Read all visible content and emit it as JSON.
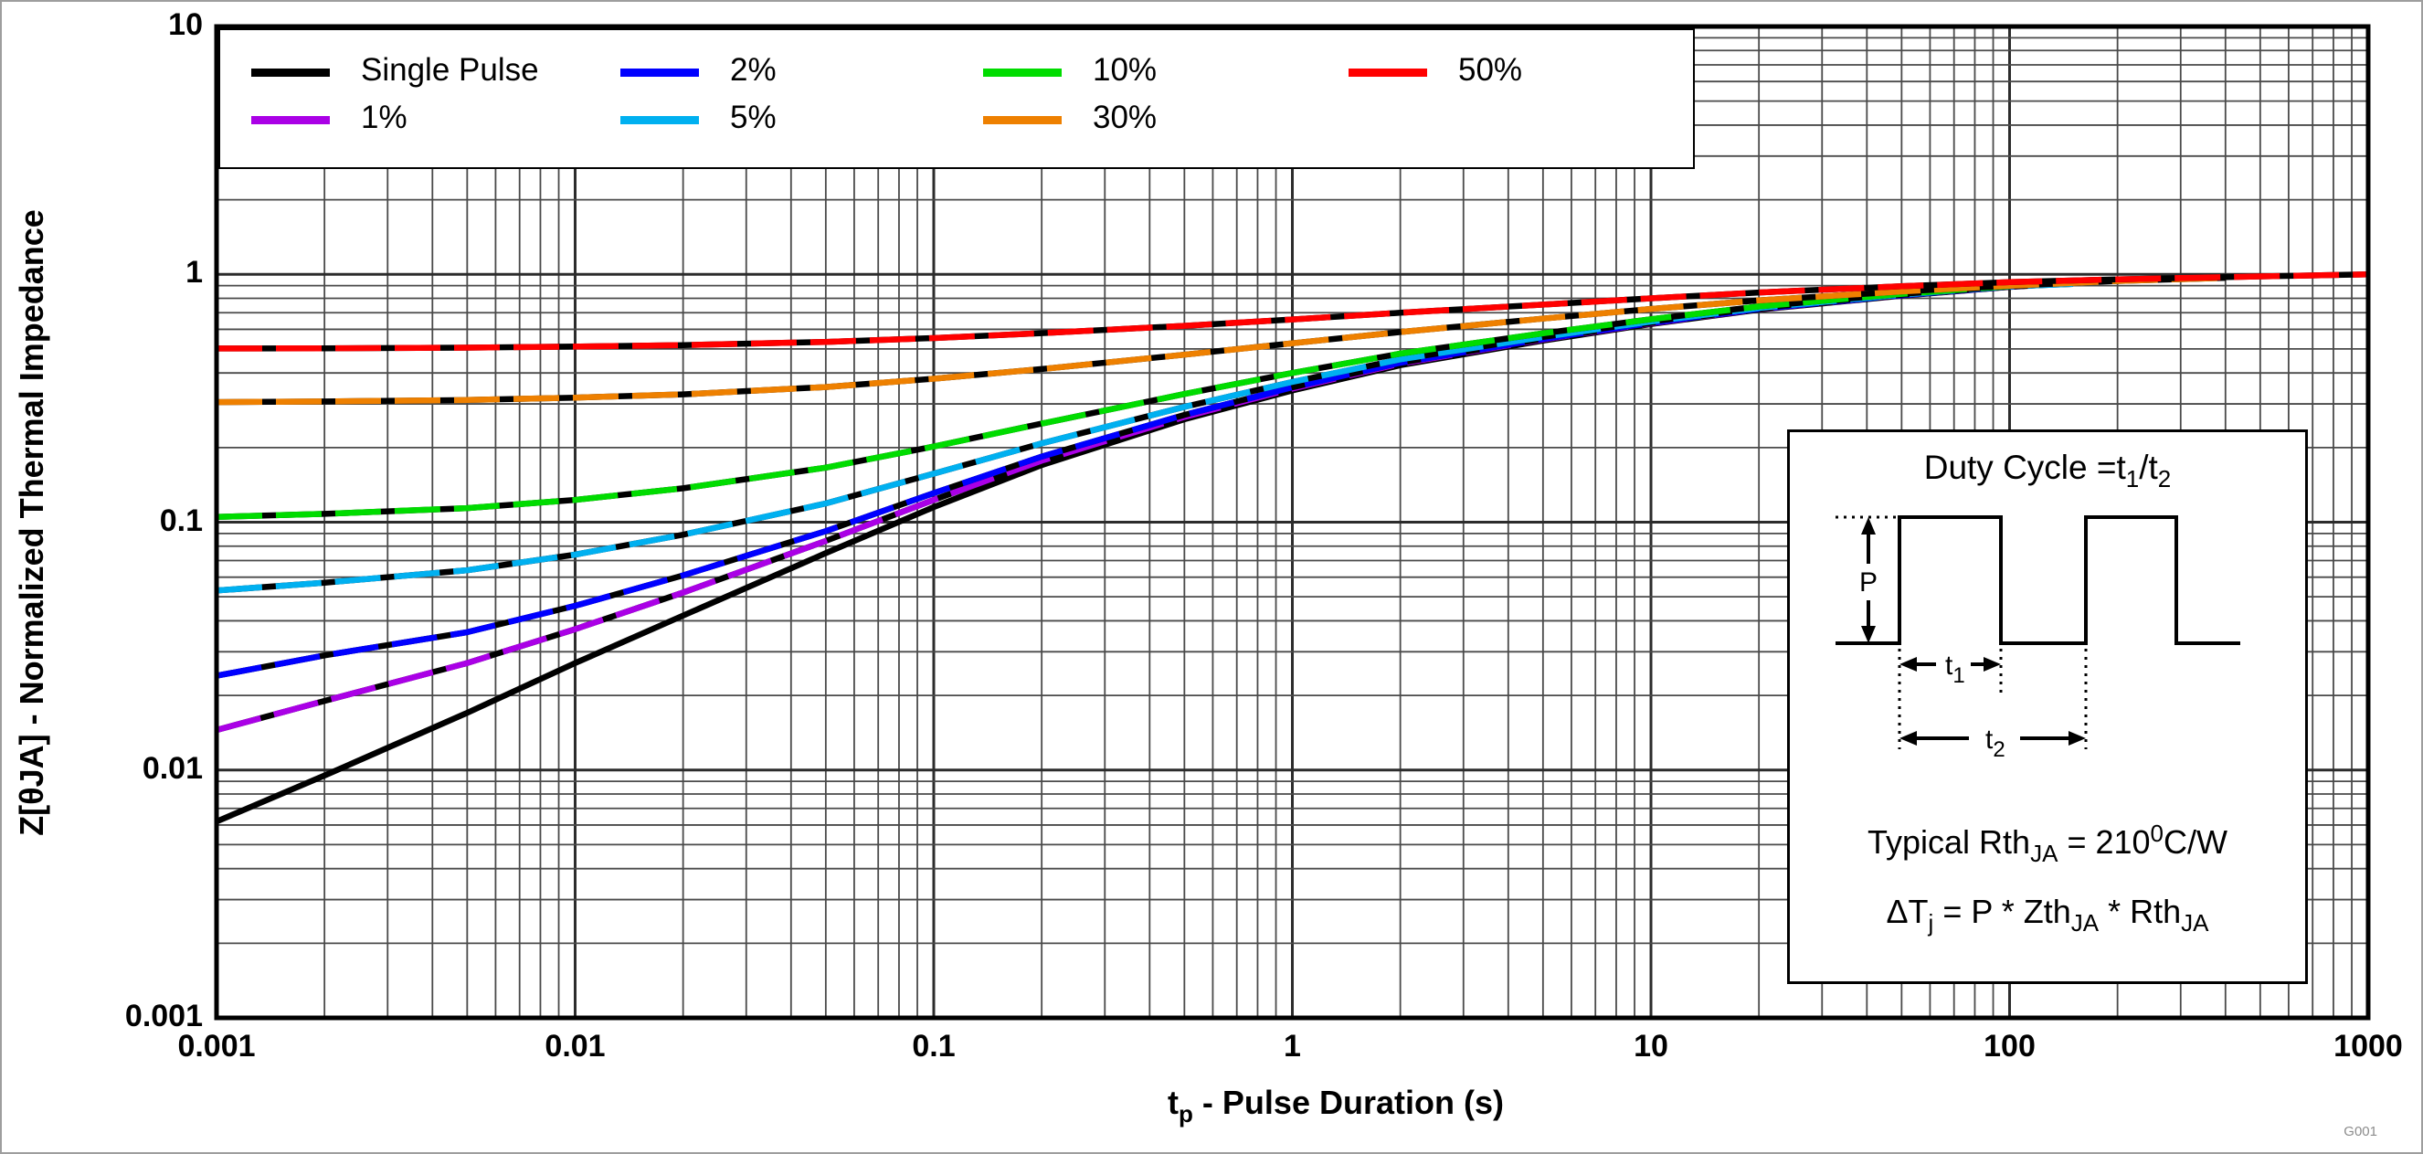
{
  "figure": {
    "watermark": "G001",
    "background": "#ffffff",
    "frame_color": "#000000",
    "grid_major_color": "#2c2c2c",
    "grid_minor_color": "#4a4a4a"
  },
  "axes": {
    "x": {
      "scale": "log",
      "min": 0.001,
      "max": 1000,
      "title_parts": {
        "pre": "t",
        "sub": "p",
        "post": " - Pulse Duration (s)"
      },
      "ticks": [
        {
          "label": "0.001",
          "value": 0.001
        },
        {
          "label": "0.01",
          "value": 0.01
        },
        {
          "label": "0.1",
          "value": 0.1
        },
        {
          "label": "1",
          "value": 1
        },
        {
          "label": "10",
          "value": 10
        },
        {
          "label": "100",
          "value": 100
        },
        {
          "label": "1000",
          "value": 1000
        }
      ]
    },
    "y": {
      "scale": "log",
      "min": 0.001,
      "max": 10,
      "title": "Z[θJA] - Normalized Thermal Impedance",
      "ticks": [
        {
          "label": "10",
          "value": 10
        },
        {
          "label": "1",
          "value": 1
        },
        {
          "label": "0.1",
          "value": 0.1
        },
        {
          "label": "0.01",
          "value": 0.01
        },
        {
          "label": "0.001",
          "value": 0.001
        }
      ]
    }
  },
  "legend": {
    "entries": [
      {
        "label": "Single Pulse",
        "color": "#000000",
        "row": 0,
        "col": 0
      },
      {
        "label": "1%",
        "color": "#AA00E6",
        "row": 1,
        "col": 0
      },
      {
        "label": "2%",
        "color": "#0000FF",
        "row": 0,
        "col": 1
      },
      {
        "label": "5%",
        "color": "#00B0F0",
        "row": 1,
        "col": 1
      },
      {
        "label": "10%",
        "color": "#00DC00",
        "row": 0,
        "col": 2
      },
      {
        "label": "30%",
        "color": "#EE8000",
        "row": 1,
        "col": 2
      },
      {
        "label": "50%",
        "color": "#FF0000",
        "row": 0,
        "col": 3
      }
    ]
  },
  "inset": {
    "title_parts": {
      "pre": "Duty Cycle =t",
      "sub1": "1",
      "mid": "/t",
      "sub2": "2"
    },
    "waveform": {
      "p_label": "P",
      "t1_pre": "t",
      "t1_sub": "1",
      "t2_pre": "t",
      "t2_sub": "2"
    },
    "line1_parts": {
      "pre": "Typical Rth",
      "sub": "JA",
      "mid": " = 210",
      "sup": "0",
      "post": "C/W"
    },
    "line2_parts": {
      "pre": "ΔT",
      "sub1": "j",
      "mid1": " = P * Zth",
      "sub2": "JA",
      "mid2": " * Rth",
      "sub3": "JA"
    }
  },
  "chart_data": {
    "type": "line",
    "x_scale": "log",
    "y_scale": "log",
    "xlim": [
      0.001,
      1000
    ],
    "ylim": [
      0.001,
      10
    ],
    "grid": true,
    "legend_position": "top-left",
    "xlabel": "tp - Pulse Duration (s)",
    "ylabel": "Z[θJA] - Normalized Thermal Impedance",
    "series": [
      {
        "name": "Single Pulse",
        "color": "#000000",
        "dashed": false,
        "points": [
          [
            0.001,
            0.0062
          ],
          [
            0.002,
            0.0095
          ],
          [
            0.005,
            0.017
          ],
          [
            0.01,
            0.027
          ],
          [
            0.02,
            0.042
          ],
          [
            0.05,
            0.075
          ],
          [
            0.1,
            0.115
          ],
          [
            0.2,
            0.17
          ],
          [
            0.5,
            0.26
          ],
          [
            1,
            0.34
          ],
          [
            2,
            0.43
          ],
          [
            5,
            0.54
          ],
          [
            10,
            0.63
          ],
          [
            20,
            0.72
          ],
          [
            50,
            0.82
          ],
          [
            100,
            0.89
          ],
          [
            200,
            0.945
          ],
          [
            300,
            0.965
          ]
        ]
      },
      {
        "name": "1%",
        "color": "#AA00E6",
        "dashed": true,
        "points": [
          [
            0.001,
            0.0145
          ],
          [
            0.002,
            0.019
          ],
          [
            0.005,
            0.027
          ],
          [
            0.01,
            0.037
          ],
          [
            0.02,
            0.052
          ],
          [
            0.05,
            0.084
          ],
          [
            0.1,
            0.123
          ],
          [
            0.2,
            0.177
          ],
          [
            0.5,
            0.266
          ],
          [
            1,
            0.346
          ],
          [
            2,
            0.436
          ],
          [
            5,
            0.546
          ],
          [
            10,
            0.634
          ],
          [
            20,
            0.724
          ],
          [
            50,
            0.822
          ],
          [
            100,
            0.891
          ],
          [
            200,
            0.946
          ]
        ]
      },
      {
        "name": "2%",
        "color": "#0000FF",
        "dashed": true,
        "points": [
          [
            0.001,
            0.024
          ],
          [
            0.002,
            0.029
          ],
          [
            0.005,
            0.036
          ],
          [
            0.01,
            0.046
          ],
          [
            0.02,
            0.061
          ],
          [
            0.05,
            0.092
          ],
          [
            0.1,
            0.131
          ],
          [
            0.2,
            0.184
          ],
          [
            0.5,
            0.271
          ],
          [
            1,
            0.35
          ],
          [
            2,
            0.44
          ],
          [
            5,
            0.549
          ],
          [
            10,
            0.637
          ],
          [
            20,
            0.726
          ],
          [
            50,
            0.824
          ],
          [
            100,
            0.892
          ],
          [
            200,
            0.947
          ]
        ]
      },
      {
        "name": "5%",
        "color": "#00B0F0",
        "dashed": true,
        "points": [
          [
            0.001,
            0.053
          ],
          [
            0.002,
            0.057
          ],
          [
            0.005,
            0.064
          ],
          [
            0.01,
            0.074
          ],
          [
            0.02,
            0.089
          ],
          [
            0.05,
            0.119
          ],
          [
            0.1,
            0.157
          ],
          [
            0.2,
            0.208
          ],
          [
            0.5,
            0.292
          ],
          [
            1,
            0.368
          ],
          [
            2,
            0.454
          ],
          [
            5,
            0.559
          ],
          [
            10,
            0.645
          ],
          [
            20,
            0.732
          ],
          [
            50,
            0.828
          ],
          [
            100,
            0.894
          ],
          [
            150,
            0.915
          ]
        ]
      },
      {
        "name": "10%",
        "color": "#00DC00",
        "dashed": true,
        "points": [
          [
            0.001,
            0.105
          ],
          [
            0.002,
            0.108
          ],
          [
            0.005,
            0.114
          ],
          [
            0.01,
            0.123
          ],
          [
            0.02,
            0.137
          ],
          [
            0.05,
            0.166
          ],
          [
            0.1,
            0.202
          ],
          [
            0.2,
            0.25
          ],
          [
            0.5,
            0.329
          ],
          [
            1,
            0.4
          ],
          [
            2,
            0.479
          ],
          [
            5,
            0.578
          ],
          [
            10,
            0.659
          ],
          [
            20,
            0.742
          ],
          [
            50,
            0.834
          ],
          [
            100,
            0.897
          ]
        ]
      },
      {
        "name": "30%",
        "color": "#EE8000",
        "dashed": true,
        "points": [
          [
            0.001,
            0.305
          ],
          [
            0.002,
            0.307
          ],
          [
            0.005,
            0.311
          ],
          [
            0.01,
            0.318
          ],
          [
            0.02,
            0.328
          ],
          [
            0.05,
            0.351
          ],
          [
            0.1,
            0.379
          ],
          [
            0.2,
            0.415
          ],
          [
            0.5,
            0.474
          ],
          [
            1,
            0.527
          ],
          [
            2,
            0.585
          ],
          [
            5,
            0.663
          ],
          [
            10,
            0.725
          ],
          [
            20,
            0.785
          ],
          [
            50,
            0.853
          ],
          [
            100,
            0.9
          ],
          [
            200,
            0.94
          ],
          [
            400,
            0.968
          ]
        ]
      },
      {
        "name": "50%",
        "color": "#FF0000",
        "dashed": true,
        "points": [
          [
            0.001,
            0.502
          ],
          [
            0.002,
            0.503
          ],
          [
            0.005,
            0.506
          ],
          [
            0.01,
            0.511
          ],
          [
            0.02,
            0.518
          ],
          [
            0.05,
            0.534
          ],
          [
            0.1,
            0.553
          ],
          [
            0.2,
            0.579
          ],
          [
            0.5,
            0.62
          ],
          [
            1,
            0.658
          ],
          [
            2,
            0.7
          ],
          [
            5,
            0.755
          ],
          [
            10,
            0.8
          ],
          [
            20,
            0.845
          ],
          [
            50,
            0.895
          ],
          [
            100,
            0.93
          ],
          [
            200,
            0.955
          ],
          [
            500,
            0.981
          ],
          [
            1000,
            1.0
          ]
        ]
      }
    ]
  }
}
